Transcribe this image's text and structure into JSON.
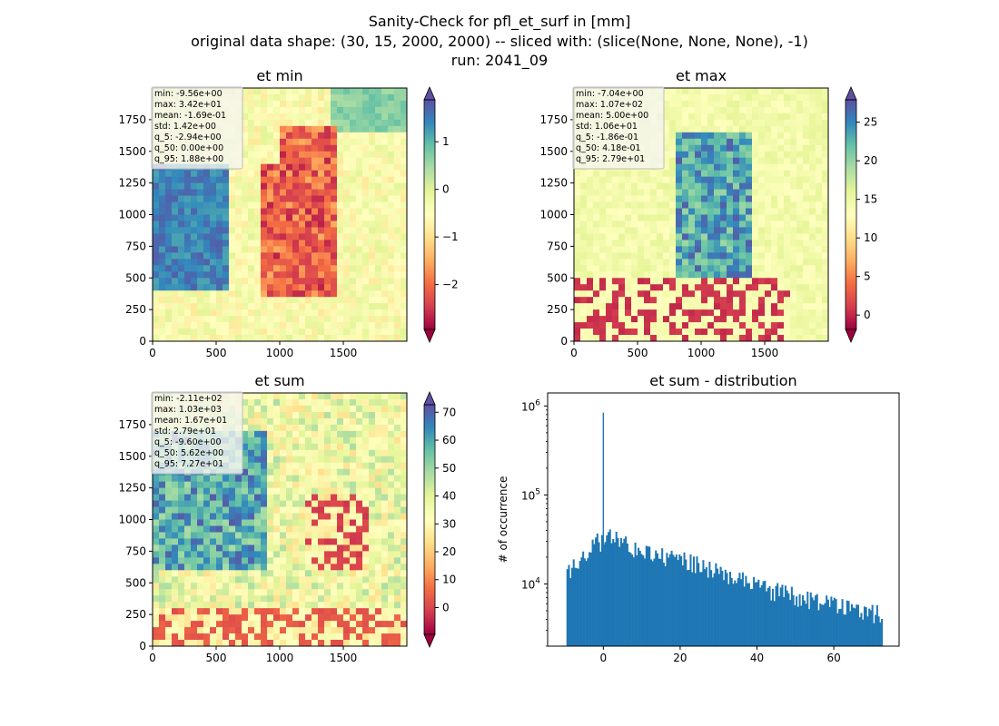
{
  "figure": {
    "title_lines": [
      "Sanity-Check for pfl_et_surf in [mm]",
      "original data shape: (30, 15, 2000, 2000) -- sliced with: (slice(None, None, None), -1)",
      "run: 2041_09"
    ]
  },
  "chart_data": [
    {
      "type": "heatmap",
      "title": "et min",
      "xlim": [
        0,
        2000
      ],
      "ylim": [
        0,
        2000
      ],
      "xticks": [
        0,
        500,
        1000,
        1500
      ],
      "yticks": [
        0,
        250,
        500,
        750,
        1000,
        1250,
        1500,
        1750
      ],
      "colormap": "Spectral",
      "colorbar": {
        "min": -2.94,
        "max": 1.88,
        "ticks": [
          "1",
          "0",
          "−1",
          "−2"
        ],
        "tick_values": [
          1,
          0,
          -1,
          -2
        ],
        "extend": "both"
      },
      "stats": [
        "min: -9.56e+00",
        "max: 3.42e+01",
        "mean: -1.69e-01",
        "std: 1.42e+00",
        "q_5: -2.94e+00",
        "q_50: 0.00e+00",
        "q_95: 1.88e+00"
      ]
    },
    {
      "type": "heatmap",
      "title": "et max",
      "xlim": [
        0,
        2000
      ],
      "ylim": [
        0,
        2000
      ],
      "xticks": [
        0,
        500,
        1000,
        1500
      ],
      "yticks": [
        0,
        250,
        500,
        750,
        1000,
        1250,
        1500,
        1750
      ],
      "colormap": "Spectral",
      "colorbar": {
        "min": -1.86,
        "max": 27.9,
        "ticks": [
          "25",
          "20",
          "15",
          "10",
          "5",
          "0"
        ],
        "tick_values": [
          25,
          20,
          15,
          10,
          5,
          0
        ],
        "extend": "both"
      },
      "stats": [
        "min: -7.04e+00",
        "max: 1.07e+02",
        "mean: 5.00e+00",
        "std: 1.06e+01",
        "q_5: -1.86e-01",
        "q_50: 4.18e-01",
        "q_95: 2.79e+01"
      ]
    },
    {
      "type": "heatmap",
      "title": "et sum",
      "xlim": [
        0,
        2000
      ],
      "ylim": [
        0,
        2000
      ],
      "xticks": [
        0,
        500,
        1000,
        1500
      ],
      "yticks": [
        0,
        250,
        500,
        750,
        1000,
        1250,
        1500,
        1750
      ],
      "colormap": "Spectral",
      "colorbar": {
        "min": -9.6,
        "max": 72.7,
        "ticks": [
          "70",
          "60",
          "50",
          "40",
          "30",
          "20",
          "10",
          "0"
        ],
        "tick_values": [
          70,
          60,
          50,
          40,
          30,
          20,
          10,
          0
        ],
        "extend": "both"
      },
      "stats": [
        "min: -2.11e+02",
        "max: 1.03e+03",
        "mean: 1.67e+01",
        "std: 2.79e+01",
        "q_5: -9.60e+00",
        "q_50: 5.62e+00",
        "q_95: 7.27e+01"
      ]
    },
    {
      "type": "bar",
      "title": "et sum - distribution",
      "xlabel": "",
      "ylabel": "# of occurrence",
      "yscale": "log",
      "xlim": [
        -14.5,
        77
      ],
      "ylim": [
        2000,
        1400000
      ],
      "xticks": [
        0,
        20,
        40,
        60
      ],
      "yticks": [
        {
          "value": 10000,
          "base": "10",
          "exp": "4"
        },
        {
          "value": 100000,
          "base": "10",
          "exp": "5"
        },
        {
          "value": 1000000,
          "base": "10",
          "exp": "6"
        }
      ],
      "color": "#1f77b4",
      "bin_range": [
        -9.6,
        72.7
      ],
      "spike": {
        "x": 0,
        "value": 840000
      },
      "profile": [
        {
          "x": -9.6,
          "value": 12000
        },
        {
          "x": -6,
          "value": 20000
        },
        {
          "x": -2,
          "value": 29000
        },
        {
          "x": 2,
          "value": 34000
        },
        {
          "x": 5,
          "value": 30000
        },
        {
          "x": 10,
          "value": 22000
        },
        {
          "x": 20,
          "value": 19000
        },
        {
          "x": 30,
          "value": 14000
        },
        {
          "x": 40,
          "value": 9500
        },
        {
          "x": 50,
          "value": 7500
        },
        {
          "x": 60,
          "value": 6000
        },
        {
          "x": 72.7,
          "value": 4500
        }
      ]
    }
  ],
  "colors": {
    "bar": "#1f77b4",
    "axis": "#000000",
    "stats_box_bg": "#f5f5f0",
    "stats_box_border": "#bdbdbd"
  }
}
